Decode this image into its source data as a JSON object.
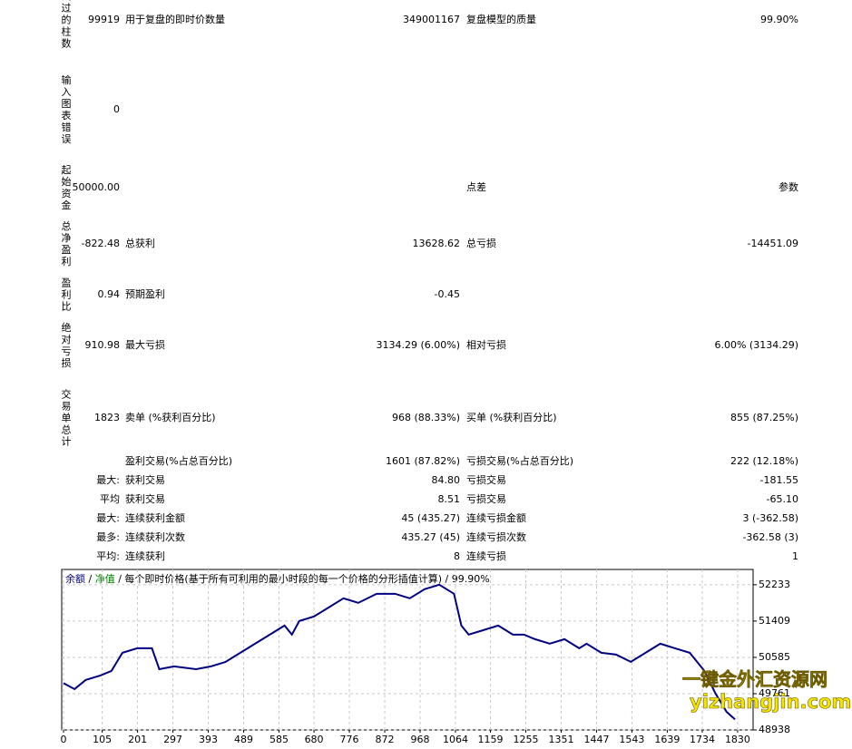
{
  "report": {
    "rows": [
      [
        "试过的柱数",
        "99919",
        "用于复盘的即时价数量",
        "349001167",
        "复盘模型的质量",
        "99.90%"
      ],
      [
        "输入图表错误",
        "0"
      ],
      [
        "起始资金",
        "50000.00",
        null,
        null,
        "点差",
        "参数"
      ],
      [
        "总净盈利",
        "-822.48",
        "总获利",
        "13628.62",
        "总亏损",
        "-14451.09"
      ],
      [
        "盈利比",
        "0.94",
        "预期盈利",
        "-0.45"
      ],
      [
        "绝对亏损",
        "910.98",
        "最大亏损",
        "3134.29 (6.00%)",
        "相对亏损",
        "6.00% (3134.29)"
      ],
      [
        "交易单总计",
        "1823",
        "卖单 (%获利百分比)",
        "968 (88.33%)",
        "买单 (%获利百分比)",
        "855 (87.25%)"
      ],
      [
        null,
        null,
        "盈利交易(%占总百分比)",
        "1601 (87.82%)",
        "亏损交易(%占总百分比)",
        "222 (12.18%)"
      ],
      [
        null,
        "最大:",
        "获利交易",
        "84.80",
        "亏损交易",
        "-181.55"
      ],
      [
        null,
        "平均",
        "获利交易",
        "8.51",
        "亏损交易",
        "-65.10"
      ],
      [
        null,
        "最大:",
        "连续获利金额",
        "45 (435.27)",
        "连续亏损金额",
        "3 (-362.58)"
      ],
      [
        null,
        "最多:",
        "连续获利次数",
        "435.27 (45)",
        "连续亏损次数",
        "-362.58 (3)"
      ],
      [
        null,
        "平均:",
        "连续获利",
        "8",
        "连续亏损",
        "1"
      ]
    ]
  },
  "chart_data": {
    "type": "line",
    "title": "每个即时价格(基于所有可利用的最小时段的每一个价格的分形插值计算)",
    "subtitle": "99.90%",
    "equity_label": "净值",
    "equity_color": "#008000",
    "x": [
      0,
      30,
      60,
      100,
      130,
      160,
      200,
      240,
      260,
      300,
      360,
      400,
      440,
      480,
      520,
      560,
      600,
      620,
      640,
      680,
      720,
      760,
      800,
      850,
      900,
      940,
      980,
      1020,
      1040,
      1060,
      1080,
      1100,
      1140,
      1180,
      1220,
      1250,
      1280,
      1320,
      1360,
      1400,
      1420,
      1460,
      1500,
      1540,
      1580,
      1620,
      1660,
      1700,
      1740,
      1770,
      1800,
      1823
    ],
    "series": [
      {
        "name": "余额",
        "color": "#000080",
        "values": [
          50000,
          49865,
          50071,
          50174,
          50277,
          50689,
          50792,
          50792,
          50318,
          50380,
          50318,
          50380,
          50483,
          50689,
          50895,
          51101,
          51307,
          51101,
          51410,
          51513,
          51719,
          51925,
          51822,
          52028,
          52028,
          51925,
          52131,
          52234,
          52131,
          52028,
          51307,
          51101,
          51204,
          51307,
          51101,
          51101,
          50998,
          50895,
          50998,
          50792,
          50895,
          50689,
          50648,
          50483,
          50689,
          50895,
          50792,
          50689,
          50277,
          49762,
          49350,
          49178
        ]
      }
    ],
    "xlim": [
      0,
      1872
    ],
    "ylim": [
      48938,
      52580
    ],
    "xticks": [
      0,
      105,
      201,
      297,
      393,
      489,
      585,
      680,
      776,
      872,
      968,
      1064,
      1159,
      1255,
      1351,
      1447,
      1543,
      1639,
      1734,
      1830
    ],
    "yticks": [
      48938,
      49761,
      50585,
      51409,
      52233
    ],
    "grid": true
  },
  "watermark": [
    "一键金外汇资源网",
    "yizhangjin.com"
  ]
}
